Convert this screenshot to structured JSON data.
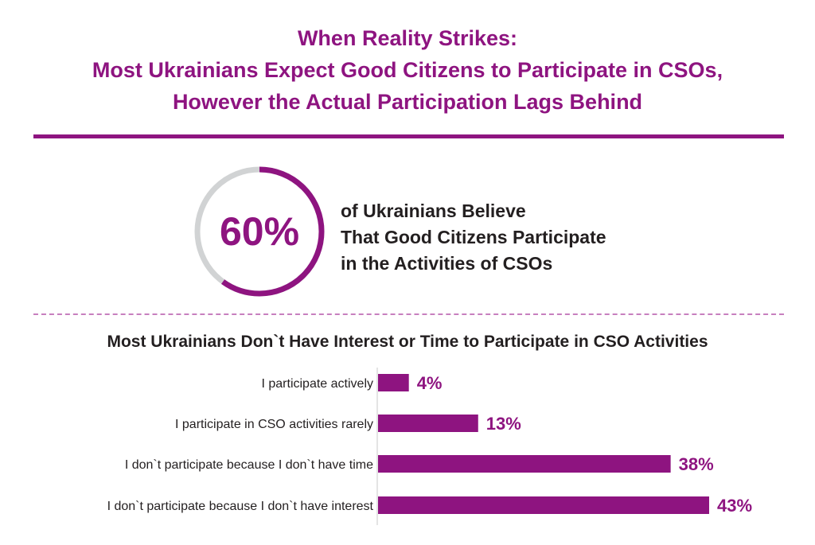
{
  "header": {
    "title_lines": [
      "When Reality Strikes:",
      "Most Ukrainians Expect Good Citizens to Participate in CSOs,",
      "However the Actual Participation Lags Behind"
    ]
  },
  "highlight": {
    "value": 60,
    "value_label": "60%",
    "text_lines": [
      "of Ukrainians Believe",
      "That Good Citizens Participate",
      "in the Activities of CSOs"
    ]
  },
  "colors": {
    "accent": "#8e1480",
    "ring_gray": "#d1d3d4",
    "text": "#231f20"
  },
  "chart_data": {
    "type": "bar",
    "orientation": "horizontal",
    "title": "Most Ukrainians Don`t Have Interest or Time to Participate in CSO Activities",
    "categories": [
      "I participate actively",
      "I participate in CSO activities rarely",
      "I don`t participate because I don`t have time",
      "I don`t participate because I don`t have interest"
    ],
    "values": [
      4,
      13,
      38,
      43
    ],
    "value_labels": [
      "4%",
      "13%",
      "38%",
      "43%"
    ],
    "xlim": [
      0,
      43
    ],
    "grid": false,
    "legend": "none"
  }
}
